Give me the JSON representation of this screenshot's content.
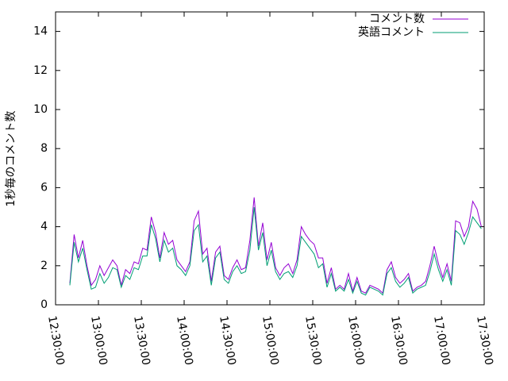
{
  "chart_data": {
    "type": "line",
    "ylabel": "1秒毎のコメント数",
    "x": [
      "12:40:00",
      "12:43:00",
      "12:46:00",
      "12:49:00",
      "12:52:00",
      "12:55:00",
      "12:58:00",
      "13:01:00",
      "13:04:00",
      "13:07:00",
      "13:10:00",
      "13:13:00",
      "13:16:00",
      "13:19:00",
      "13:22:00",
      "13:25:00",
      "13:28:00",
      "13:31:00",
      "13:34:00",
      "13:37:00",
      "13:40:00",
      "13:43:00",
      "13:46:00",
      "13:49:00",
      "13:52:00",
      "13:55:00",
      "13:58:00",
      "14:01:00",
      "14:04:00",
      "14:07:00",
      "14:10:00",
      "14:13:00",
      "14:16:00",
      "14:19:00",
      "14:22:00",
      "14:25:00",
      "14:28:00",
      "14:31:00",
      "14:34:00",
      "14:37:00",
      "14:40:00",
      "14:43:00",
      "14:46:00",
      "14:49:00",
      "14:52:00",
      "14:55:00",
      "14:58:00",
      "15:01:00",
      "15:04:00",
      "15:07:00",
      "15:10:00",
      "15:13:00",
      "15:16:00",
      "15:19:00",
      "15:22:00",
      "15:25:00",
      "15:28:00",
      "15:31:00",
      "15:34:00",
      "15:37:00",
      "15:40:00",
      "15:43:00",
      "15:46:00",
      "15:49:00",
      "15:52:00",
      "15:55:00",
      "15:58:00",
      "16:01:00",
      "16:04:00",
      "16:07:00",
      "16:10:00",
      "16:13:00",
      "16:16:00",
      "16:19:00",
      "16:22:00",
      "16:25:00",
      "16:28:00",
      "16:31:00",
      "16:34:00",
      "16:37:00",
      "16:40:00",
      "16:43:00",
      "16:46:00",
      "16:49:00",
      "16:52:00",
      "16:55:00",
      "16:58:00",
      "17:01:00",
      "17:04:00",
      "17:07:00",
      "17:10:00",
      "17:13:00",
      "17:16:00",
      "17:19:00",
      "17:22:00",
      "17:25:00",
      "17:28:00"
    ],
    "series": [
      {
        "name": "コメント数",
        "color": "#9400d3",
        "values": [
          1.1,
          3.6,
          2.4,
          3.3,
          2.0,
          1.0,
          1.3,
          2.0,
          1.5,
          1.9,
          2.3,
          2.0,
          1.0,
          1.8,
          1.6,
          2.2,
          2.1,
          2.9,
          2.8,
          4.5,
          3.7,
          2.4,
          3.7,
          3.1,
          3.3,
          2.3,
          2.0,
          1.7,
          2.2,
          4.3,
          4.8,
          2.6,
          2.9,
          1.2,
          2.7,
          3.0,
          1.5,
          1.3,
          1.9,
          2.3,
          1.8,
          1.9,
          3.3,
          5.5,
          3.0,
          4.2,
          2.3,
          3.2,
          1.9,
          1.5,
          1.9,
          2.1,
          1.6,
          2.3,
          4.0,
          3.6,
          3.3,
          3.1,
          2.4,
          2.4,
          1.1,
          1.9,
          0.8,
          1.0,
          0.8,
          1.6,
          0.7,
          1.4,
          0.7,
          0.6,
          1.0,
          0.9,
          0.8,
          0.6,
          1.8,
          2.2,
          1.4,
          1.1,
          1.3,
          1.6,
          0.7,
          0.9,
          1.0,
          1.2,
          2.0,
          3.0,
          2.1,
          1.4,
          2.1,
          1.2,
          4.3,
          4.2,
          3.5,
          4.0,
          5.3,
          4.9,
          4.0
        ]
      },
      {
        "name": "英語コメント",
        "color": "#009e73",
        "values": [
          1.0,
          3.2,
          2.2,
          2.9,
          1.8,
          0.8,
          0.9,
          1.6,
          1.1,
          1.4,
          1.9,
          1.8,
          0.9,
          1.5,
          1.3,
          1.9,
          1.8,
          2.5,
          2.5,
          4.1,
          3.4,
          2.2,
          3.3,
          2.7,
          2.9,
          2.0,
          1.8,
          1.5,
          2.0,
          3.8,
          4.1,
          2.2,
          2.5,
          1.0,
          2.4,
          2.7,
          1.3,
          1.1,
          1.7,
          2.0,
          1.6,
          1.7,
          2.8,
          5.0,
          2.8,
          3.7,
          2.0,
          2.8,
          1.7,
          1.3,
          1.6,
          1.7,
          1.4,
          2.0,
          3.5,
          3.2,
          2.9,
          2.6,
          1.9,
          2.1,
          0.9,
          1.6,
          0.7,
          0.9,
          0.7,
          1.3,
          0.6,
          1.2,
          0.6,
          0.5,
          0.9,
          0.8,
          0.7,
          0.5,
          1.6,
          1.9,
          1.2,
          0.9,
          1.1,
          1.4,
          0.6,
          0.8,
          0.9,
          1.0,
          1.7,
          2.6,
          1.8,
          1.2,
          1.8,
          1.0,
          3.8,
          3.6,
          3.1,
          3.7,
          4.5,
          4.2,
          3.9
        ]
      }
    ],
    "xlim": [
      "12:30:00",
      "17:30:00"
    ],
    "xticks": [
      "12:30:00",
      "13:00:00",
      "13:30:00",
      "14:00:00",
      "14:30:00",
      "15:00:00",
      "15:30:00",
      "16:00:00",
      "16:30:00",
      "17:00:00",
      "17:30:00"
    ],
    "ylim": [
      0,
      15
    ],
    "yticks": [
      0,
      2,
      4,
      6,
      8,
      10,
      12,
      14
    ],
    "legend": "top-right"
  }
}
